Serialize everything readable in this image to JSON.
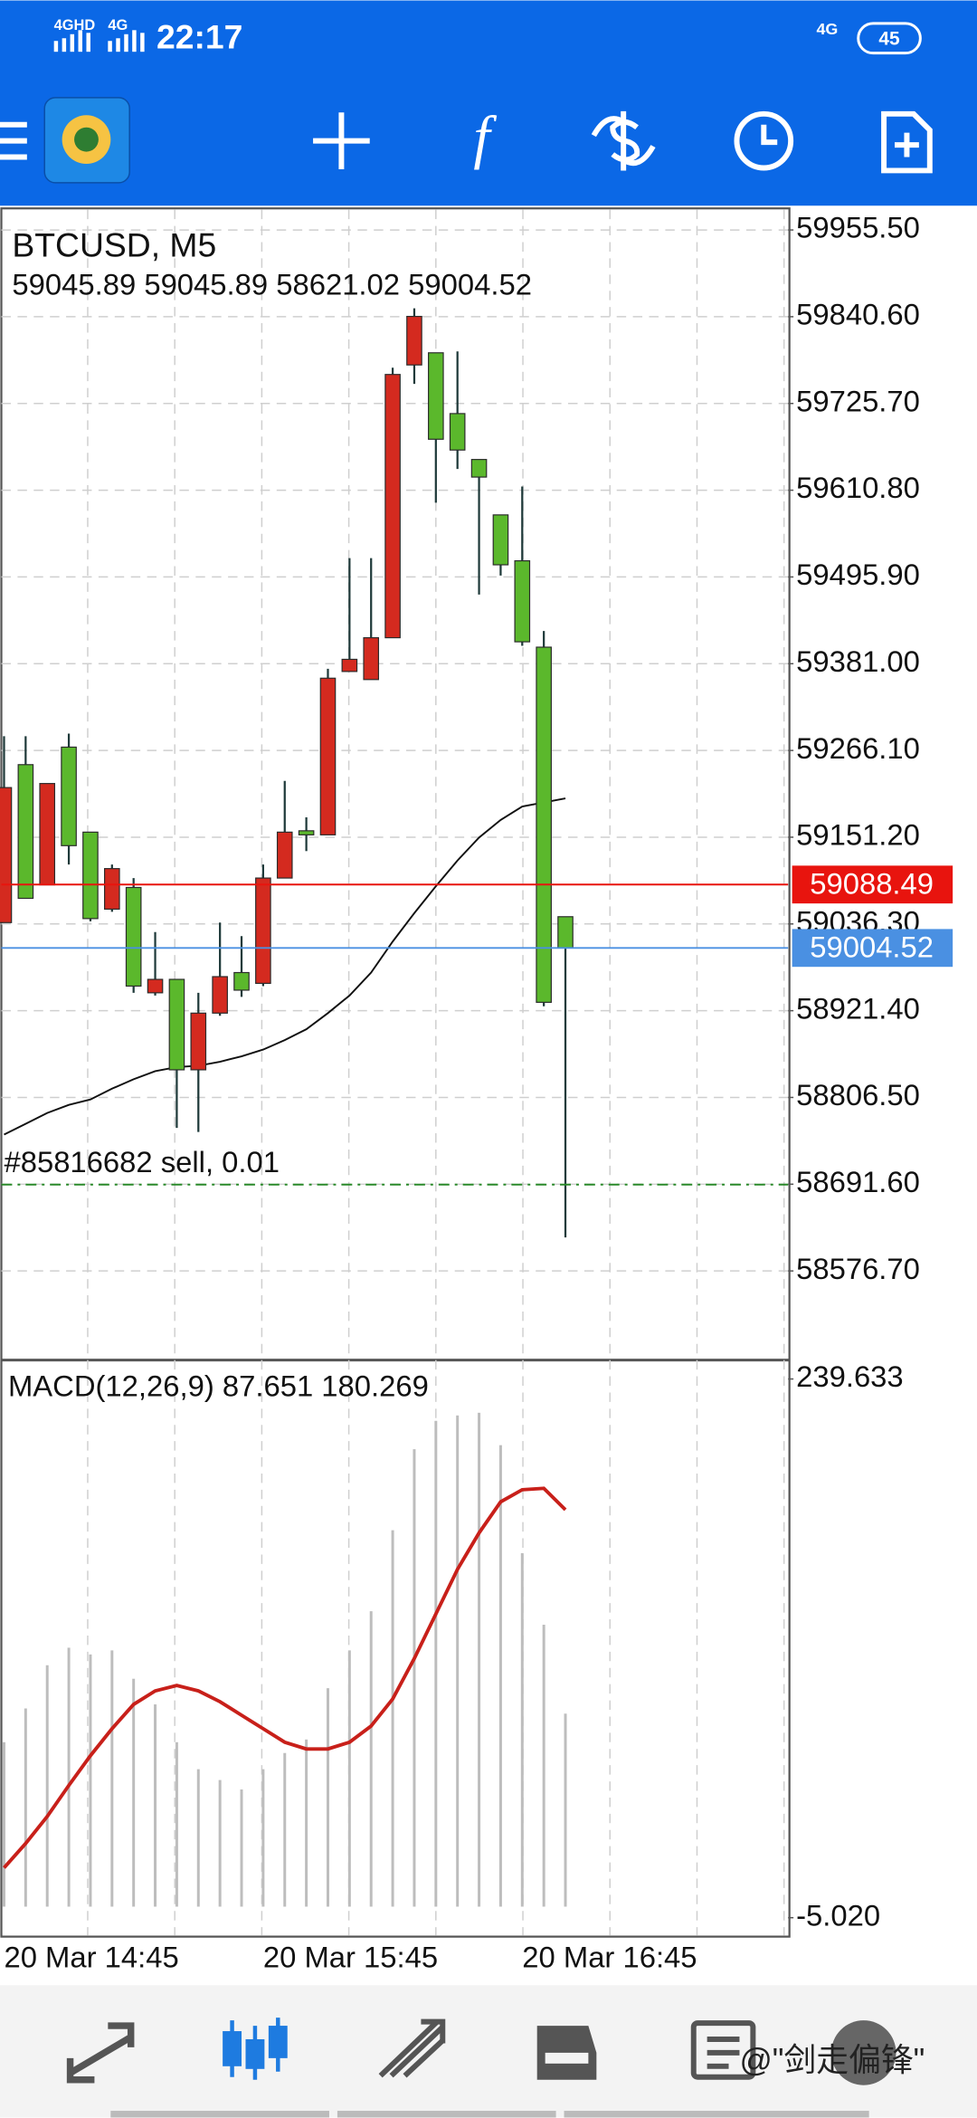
{
  "status_bar": {
    "network": [
      "4GHD",
      "4G"
    ],
    "time": "22:17",
    "network_right": "4G",
    "battery": "45"
  },
  "chart_data": [
    {
      "type": "candlestick",
      "title": "BTCUSD, M5",
      "subtitle": "59045.89 59045.89 58621.02 59004.52",
      "categories": [
        "20 Mar 14:45",
        null,
        null,
        null,
        null,
        null,
        null,
        null,
        null,
        null,
        null,
        null,
        "20 Mar 15:45",
        null,
        null,
        null,
        null,
        null,
        null,
        null,
        null,
        null,
        null,
        null,
        "20 Mar 16:45",
        null,
        null
      ],
      "open": [
        59038.1,
        59247.3,
        59088.1,
        59270.5,
        59157.9,
        59055.9,
        59084.6,
        58945.1,
        58962.9,
        58843.1,
        58918.2,
        58971.9,
        58957.6,
        59097.1,
        59159.7,
        59154.3,
        59370.7,
        59360.0,
        59415.4,
        59776.7,
        59792.8,
        59712.3,
        59651.5,
        59578.1,
        59517.3,
        59402.9,
        59045.89
      ],
      "high": [
        59284.9,
        59284.9,
        59222.3,
        59288.4,
        59157.9,
        59115.0,
        59097.1,
        59025.5,
        58962.9,
        58945.1,
        59038.1,
        59020.2,
        59115.0,
        59225.8,
        59177.5,
        59374.3,
        59520.9,
        59520.9,
        59773.1,
        59851.8,
        59792.8,
        59794.6,
        59651.5,
        59578.1,
        59615.7,
        59424.3,
        59045.89
      ],
      "low": [
        59038.1,
        59070.2,
        59088.1,
        59115.0,
        59039.8,
        59052.4,
        58945.1,
        58941.5,
        58766.2,
        58760.8,
        58914.7,
        58939.7,
        58954.0,
        59097.1,
        59132.8,
        59154.3,
        59370.7,
        59360.0,
        59415.4,
        59751.6,
        59594.2,
        59639.0,
        59472.6,
        59497.7,
        59404.7,
        58927.2,
        58621.02
      ],
      "close": [
        59216.9,
        59070.2,
        59222.3,
        59140.0,
        59043.4,
        59109.6,
        58954.0,
        58962.9,
        58843.1,
        58918.2,
        58966.5,
        58948.6,
        59097.1,
        59157.9,
        59154.3,
        59361.8,
        59386.8,
        59415.4,
        59764.1,
        59841.0,
        59678.3,
        59664.0,
        59628.2,
        59512.0,
        59410.0,
        58932.5,
        59004.52
      ],
      "bull_color": "#d42a1f",
      "bear_color": "#5bb82c",
      "ma": {
        "color": "#111111",
        "values": [
          58757.3,
          58771.6,
          58785.9,
          58796.6,
          58803.8,
          58818.1,
          58830.6,
          58841.3,
          58846.7,
          58848.5,
          58853.8,
          58861.0,
          58869.9,
          58882.5,
          58896.8,
          58918.2,
          58941.5,
          58971.9,
          59013.0,
          59050.6,
          59086.3,
          59120.3,
          59150.7,
          59174.0,
          59191.9,
          59197.2,
          59202.6
        ]
      },
      "ylim": [
        58460.4,
        59982.3
      ],
      "yticks": [
        {
          "value": 59955.5,
          "label": "59955.50"
        },
        {
          "value": 59840.6,
          "label": "59840.60"
        },
        {
          "value": 59725.7,
          "label": "59725.70"
        },
        {
          "value": 59610.8,
          "label": "59610.80"
        },
        {
          "value": 59495.9,
          "label": "59495.90"
        },
        {
          "value": 59381.0,
          "label": "59381.00"
        },
        {
          "value": 59266.1,
          "label": "59266.10"
        },
        {
          "value": 59151.2,
          "label": "59151.20"
        },
        {
          "value": 59036.3,
          "label": "59036.30"
        },
        {
          "value": 58921.4,
          "label": "58921.40"
        },
        {
          "value": 58806.5,
          "label": "58806.50"
        },
        {
          "value": 58691.6,
          "label": "58691.60"
        },
        {
          "value": 58576.7,
          "label": "58576.70"
        }
      ],
      "grid": true,
      "price_lines": [
        {
          "value": 59088.49,
          "color": "#e8140e"
        },
        {
          "value": 59004.52,
          "color": "#4a90e2"
        }
      ],
      "order": {
        "label": "#85816682 sell, 0.01",
        "value": 58691.1,
        "color": "#2a8a2a"
      }
    },
    {
      "type": "macd",
      "title": "MACD(12,26,9) 87.651 180.269",
      "histogram": {
        "color": "#bdbdbd",
        "values": [
          74.68,
          90.01,
          109.63,
          117.6,
          114.54,
          116.38,
          103.5,
          91.85,
          74.68,
          62.42,
          57.51,
          53.22,
          62.42,
          69.77,
          75.91,
          99.21,
          116.38,
          134.16,
          170.95,
          207.74,
          220.62,
          223.07,
          224.3,
          209.58,
          160.53,
          128.03,
          87.651
        ]
      },
      "signal": {
        "color": "#c8201a",
        "values": [
          17.65,
          28.69,
          40.95,
          55.06,
          68.55,
          80.81,
          91.85,
          97.98,
          100.43,
          97.98,
          93.08,
          86.94,
          80.81,
          74.68,
          71.61,
          71.61,
          74.68,
          82.04,
          94.3,
          112.7,
          132.93,
          153.17,
          169.73,
          183.83,
          189.35,
          189.96,
          180.269
        ]
      },
      "ylim": [
        -13.0,
        247.6
      ],
      "yticks": [
        239.633,
        {
          "value": -5.02,
          "label": "-5.020"
        }
      ]
    }
  ],
  "watermark": "@\"剑走偏锋\""
}
